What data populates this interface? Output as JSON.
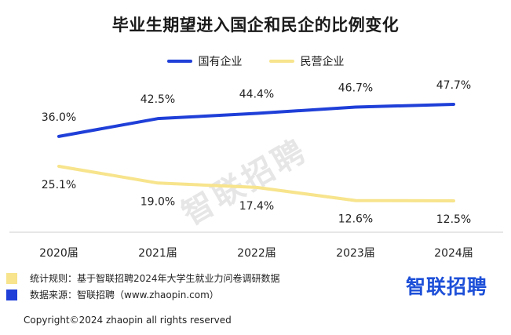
{
  "chart_data": {
    "type": "line",
    "title": "毕业生期望进入国企和民企的比例变化",
    "categories": [
      "2020届",
      "2021届",
      "2022届",
      "2023届",
      "2024届"
    ],
    "series": [
      {
        "name": "国有企业",
        "values": [
          36.0,
          42.5,
          44.4,
          46.7,
          47.7
        ],
        "labels": [
          "36.0%",
          "42.5%",
          "44.4%",
          "46.7%",
          "47.7%"
        ],
        "color": "#1f3fd8"
      },
      {
        "name": "民营企业",
        "values": [
          25.1,
          19.0,
          17.4,
          12.6,
          12.5
        ],
        "labels": [
          "25.1%",
          "19.0%",
          "17.4%",
          "12.6%",
          "12.5%"
        ],
        "color": "#f7e48c"
      }
    ],
    "xlabel": "",
    "ylabel": "",
    "ylim": [
      0,
      60
    ],
    "grid": false,
    "legend": "top-center"
  },
  "watermark": "智联招聘",
  "footnotes": [
    {
      "text": "统计规则：基于智联招聘2024年大学生就业力问卷调研数据",
      "color": "#f7e48c"
    },
    {
      "text": "数据来源：智联招聘（www.zhaopin.com）",
      "color": "#1f3fd8"
    }
  ],
  "brand": "智联招聘",
  "copyright": "Copyright©2024 zhaopin all rights reserved"
}
